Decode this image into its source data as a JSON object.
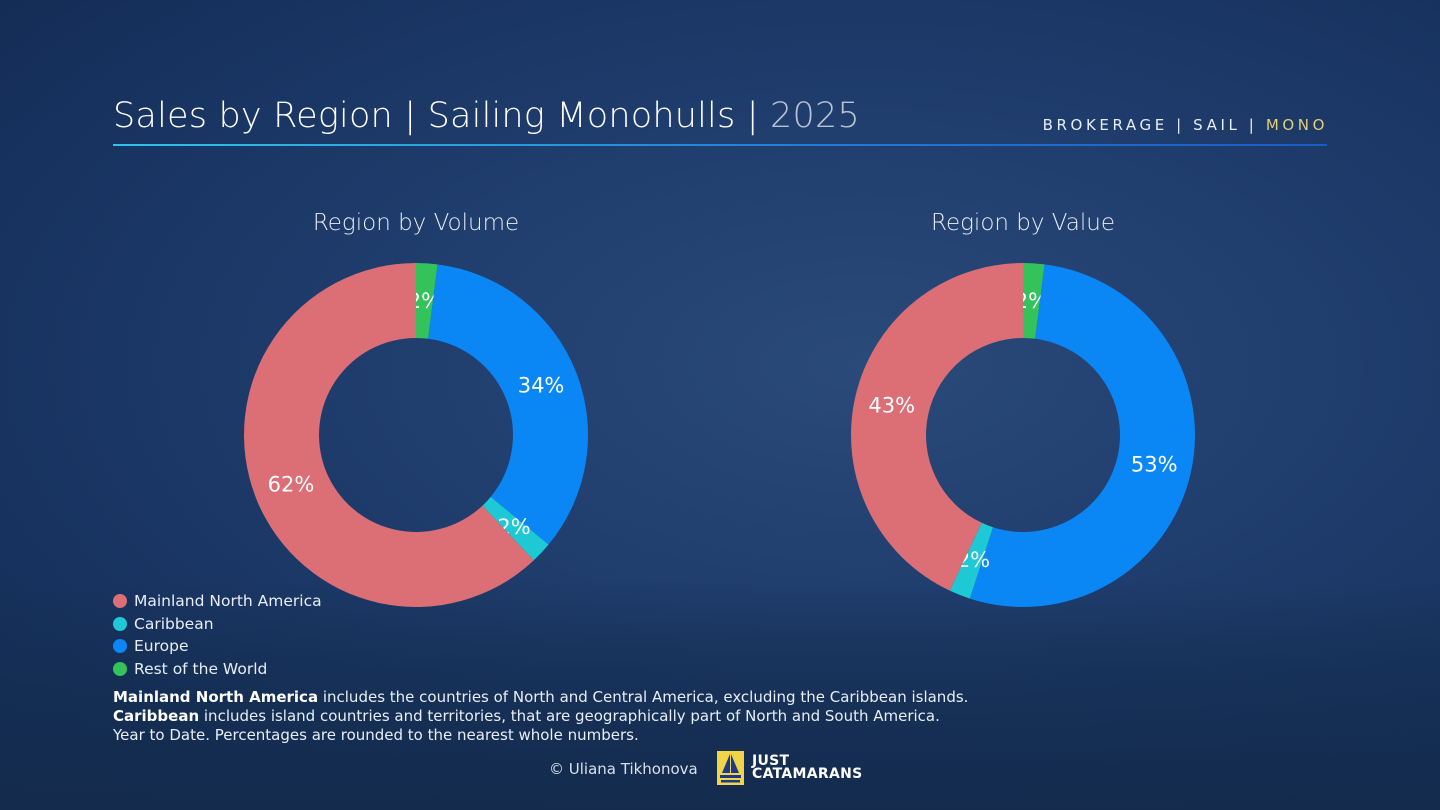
{
  "header": {
    "title_main": "Sales by Region | Sailing Monohulls | ",
    "title_year": "2025",
    "tag_1": "BROKERAGE | SAIL | ",
    "tag_2": "MONO"
  },
  "colors": {
    "Mainland North America": "#dc6f75",
    "Caribbean": "#1ec8d4",
    "Europe": "#0a87f5",
    "Rest of the World": "#34c35a"
  },
  "chart_data": [
    {
      "type": "pie",
      "title": "Region by Volume",
      "categories": [
        "Rest of the World",
        "Europe",
        "Caribbean",
        "Mainland North America"
      ],
      "values": [
        2,
        34,
        2,
        62
      ],
      "labels": [
        "2%",
        "34%",
        "2%",
        "62%"
      ]
    },
    {
      "type": "pie",
      "title": "Region by Value",
      "categories": [
        "Rest of the World",
        "Europe",
        "Caribbean",
        "Mainland North America"
      ],
      "values": [
        2,
        53,
        2,
        43
      ],
      "labels": [
        "2%",
        "53%",
        "2%",
        "43%"
      ]
    }
  ],
  "legend": [
    {
      "label": "Mainland North America",
      "color": "#dc6f75"
    },
    {
      "label": "Caribbean",
      "color": "#1ec8d4"
    },
    {
      "label": "Europe",
      "color": "#0a87f5"
    },
    {
      "label": "Rest of the World",
      "color": "#34c35a"
    }
  ],
  "notes": [
    {
      "bold": "Mainland North America",
      "text": " includes the countries of North and Central America, excluding the Caribbean islands."
    },
    {
      "bold": "Caribbean",
      "text": " includes island countries and territories, that are geographically part of North and South America."
    },
    {
      "bold": "",
      "text": "Year to Date. Percentages are rounded to the nearest whole numbers."
    }
  ],
  "footer": {
    "credit": "© Uliana Tikhonova",
    "logo_line1": "JUST",
    "logo_line2": "CATAMARANS"
  }
}
